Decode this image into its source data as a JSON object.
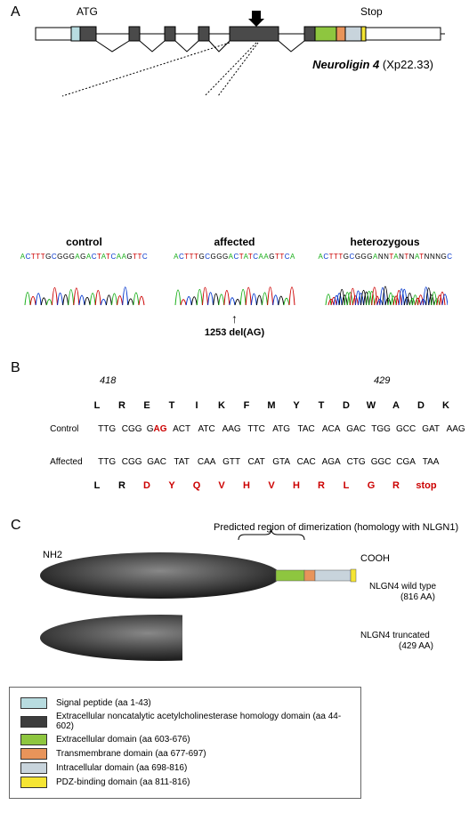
{
  "panelA": {
    "label": "A",
    "atg": "ATG",
    "stop": "Stop",
    "gene_name_italic": "Neuroligin 4",
    "gene_name_loc": " (Xp22.33)",
    "chromatograms": [
      {
        "title": "control",
        "seq": "ACTTTGCGGGAGACTATCAAGTTC",
        "colors": [
          "#1aaf1a",
          "#cc0000",
          "#0033cc",
          "#000000"
        ]
      },
      {
        "title": "affected",
        "seq": "ACTTTGCGGGACTATCAAGTTCA",
        "mutation_arrow": "↑",
        "mutation": "1253 del(AG)"
      },
      {
        "title": "heterozygous",
        "seq": "ACTTTGCGGGANNTANTNATNNNGC"
      }
    ],
    "intron_color": "#000000",
    "exon_fill": "#4a4a4a"
  },
  "panelB": {
    "label": "B",
    "pos_left": "418",
    "pos_right": "429",
    "aa_top": [
      "L",
      "R",
      "E",
      "T",
      "I",
      "K",
      "F",
      "M",
      "Y",
      "T",
      "D",
      "W",
      "A",
      "D",
      "K"
    ],
    "control_label": "Control",
    "control_dna": [
      "TTG",
      "CGG",
      "GAG",
      "ACT",
      "ATC",
      "AAG",
      "TTC",
      "ATG",
      "TAC",
      "ACA",
      "GAC",
      "TGG",
      "GCC",
      "GAT",
      "AAG"
    ],
    "control_red_idx": 2,
    "control_red_sub": "AG",
    "affected_label": "Affected",
    "affected_dna": [
      "TTG",
      "CGG",
      "GAC",
      "TAT",
      "CAA",
      "GTT",
      "CAT",
      "GTA",
      "CAC",
      "AGA",
      "CTG",
      "GGC",
      "CGA",
      "TAA"
    ],
    "aa_bottom": [
      "L",
      "R",
      "D",
      "Y",
      "Q",
      "V",
      "H",
      "V",
      "H",
      "R",
      "L",
      "G",
      "R",
      "stop"
    ],
    "mut_color": "#cc0000"
  },
  "panelC": {
    "label": "C",
    "dimer_text": "Predicted region of dimerization (homology with NLGN1)",
    "nh2": "NH2",
    "cooh": "COOH",
    "wt_lines": [
      "NLGN4 wild type",
      "(816 AA)"
    ],
    "trunc_lines": [
      "NLGN4 truncated",
      "(429 AA)"
    ],
    "domain_colors": {
      "signal": "#b8dce0",
      "ache": "#3d3d3d",
      "extracell": "#8ec63f",
      "transmem": "#e8945a",
      "intracell": "#c8d4dc",
      "pdz": "#f5e533"
    },
    "legend": [
      {
        "color": "#b8dce0",
        "text": "Signal peptide (aa 1-43)"
      },
      {
        "color": "#3d3d3d",
        "text": "Extracellular noncatalytic acetylcholinesterase homology domain (aa 44-602)"
      },
      {
        "color": "#8ec63f",
        "text": "Extracellular domain (aa 603-676)"
      },
      {
        "color": "#e8945a",
        "text": "Transmembrane domain (aa 677-697)"
      },
      {
        "color": "#c8d4dc",
        "text": "Intracellular domain (aa 698-816)"
      },
      {
        "color": "#f5e533",
        "text": "PDZ-binding domain (aa 811-816)"
      }
    ]
  }
}
